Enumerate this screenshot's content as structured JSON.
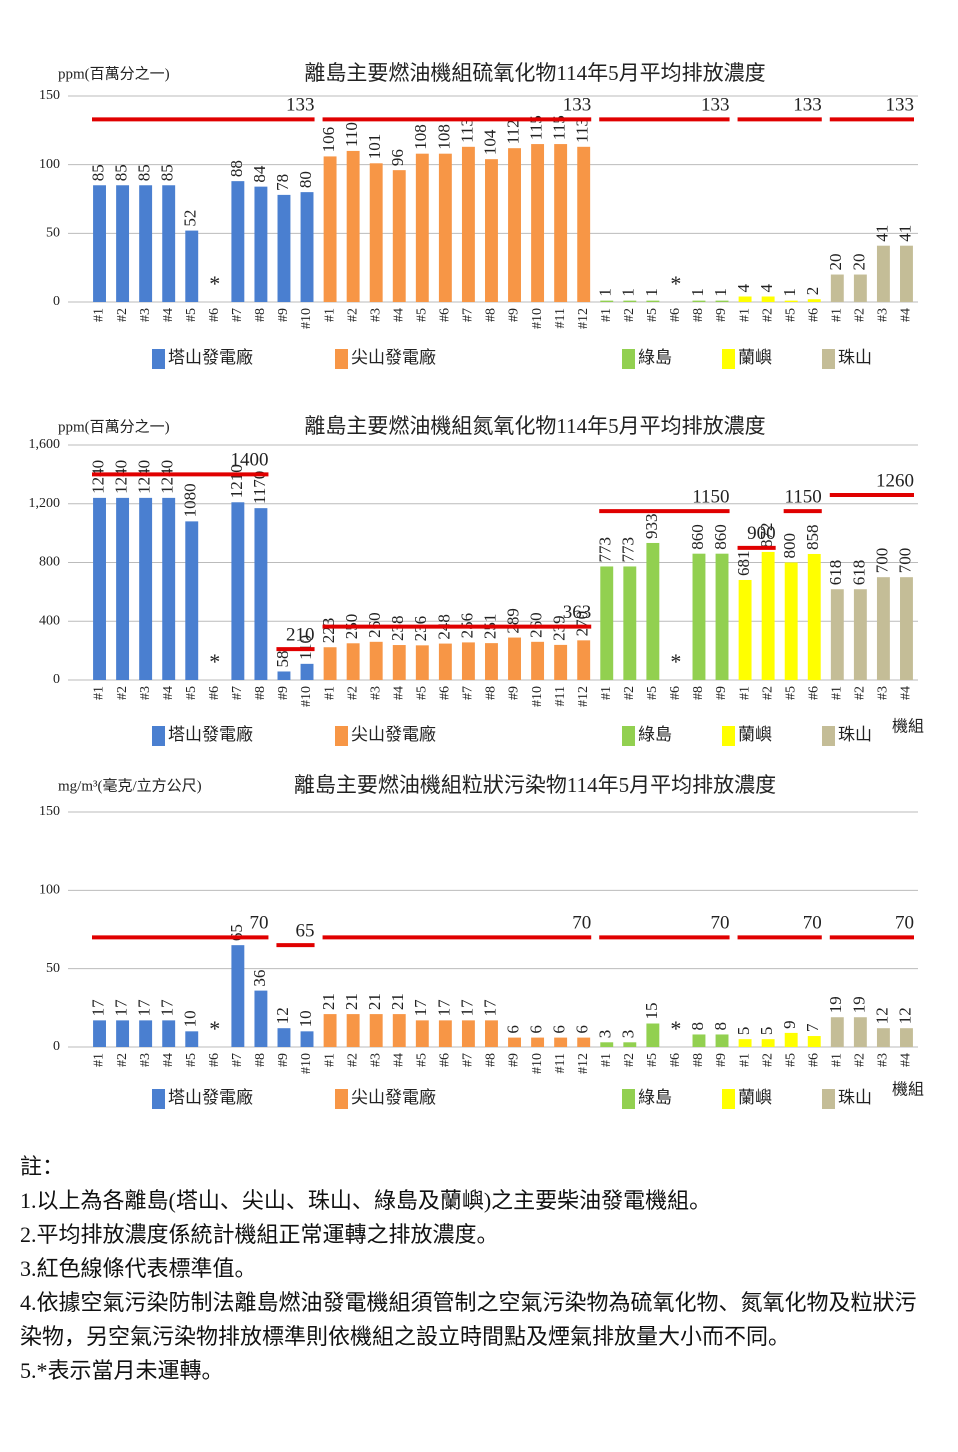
{
  "chart_data": [
    {
      "type": "bar",
      "title": "離島主要燃油機組硫氧化物114年5月平均排放濃度",
      "ylabel": "ppm(百萬分之一)",
      "ylim": [
        0,
        150
      ],
      "yticks": [
        0,
        50,
        100,
        150
      ],
      "grid": true,
      "series": [
        {
          "name": "塔山發電廠",
          "color": "#4a7fd0",
          "categories": [
            "#1",
            "#2",
            "#3",
            "#4",
            "#5",
            "#6",
            "#7",
            "#8",
            "#9",
            "#10"
          ],
          "values": [
            85,
            85,
            85,
            85,
            52,
            null,
            88,
            84,
            78,
            80
          ],
          "value_labels": [
            null,
            null,
            null,
            null,
            null,
            "*",
            null,
            null,
            null,
            null
          ],
          "limits": [
            133,
            133,
            133,
            133,
            133,
            133,
            133,
            133,
            133,
            133
          ]
        },
        {
          "name": "尖山發電廠",
          "color": "#f79646",
          "categories": [
            "#1",
            "#2",
            "#3",
            "#4",
            "#5",
            "#6",
            "#7",
            "#8",
            "#9",
            "#10",
            "#11",
            "#12"
          ],
          "values": [
            106,
            110,
            101,
            96,
            108,
            108,
            113,
            104,
            112,
            115,
            115,
            113
          ],
          "limits": [
            133,
            133,
            133,
            133,
            133,
            133,
            133,
            133,
            133,
            133,
            133,
            133
          ]
        },
        {
          "name": "綠島",
          "color": "#92d050",
          "categories": [
            "#1",
            "#2",
            "#5",
            "#6",
            "#8",
            "#9"
          ],
          "values": [
            1,
            1,
            1,
            null,
            1,
            1
          ],
          "value_labels": [
            null,
            null,
            null,
            "*",
            null,
            null
          ],
          "limits": [
            133,
            133,
            133,
            133,
            133,
            133
          ]
        },
        {
          "name": "蘭嶼",
          "color": "#ffff00",
          "categories": [
            "#1",
            "#2",
            "#5",
            "#6"
          ],
          "values": [
            4,
            4,
            1,
            2
          ],
          "limits": [
            133,
            133,
            133,
            133
          ]
        },
        {
          "name": "珠山",
          "color": "#c4bd97",
          "categories": [
            "#1",
            "#2",
            "#3",
            "#4"
          ],
          "values": [
            20,
            20,
            41,
            41
          ],
          "limits": [
            133,
            133,
            133,
            133
          ]
        }
      ]
    },
    {
      "type": "bar",
      "title": "離島主要燃油機組氮氧化物114年5月平均排放濃度",
      "ylabel": "ppm(百萬分之一)",
      "xlabel": "機組",
      "ylim": [
        0,
        1600
      ],
      "yticks": [
        0,
        400,
        800,
        {
          "value": 1200,
          "label": "1,200"
        },
        {
          "value": 1600,
          "label": "1,600"
        }
      ],
      "grid": true,
      "series": [
        {
          "name": "塔山發電廠",
          "color": "#4a7fd0",
          "categories": [
            "#1",
            "#2",
            "#3",
            "#4",
            "#5",
            "#6",
            "#7",
            "#8",
            "#9",
            "#10"
          ],
          "values": [
            1240,
            1240,
            1240,
            1240,
            1080,
            null,
            1210,
            1170,
            58,
            110
          ],
          "value_labels": [
            null,
            null,
            null,
            null,
            null,
            "*",
            null,
            null,
            null,
            null
          ],
          "limits": [
            1400,
            1400,
            1400,
            1400,
            1400,
            1400,
            1400,
            1400,
            210,
            210
          ]
        },
        {
          "name": "尖山發電廠",
          "color": "#f79646",
          "categories": [
            "#1",
            "#2",
            "#3",
            "#4",
            "#5",
            "#6",
            "#7",
            "#8",
            "#9",
            "#10",
            "#11",
            "#12"
          ],
          "values": [
            223,
            250,
            260,
            238,
            236,
            248,
            256,
            251,
            289,
            260,
            239,
            270
          ],
          "limits": [
            363,
            363,
            363,
            363,
            363,
            363,
            363,
            363,
            363,
            363,
            363,
            363
          ]
        },
        {
          "name": "綠島",
          "color": "#92d050",
          "categories": [
            "#1",
            "#2",
            "#5",
            "#6",
            "#8",
            "#9"
          ],
          "values": [
            773,
            773,
            933,
            null,
            860,
            860
          ],
          "value_labels": [
            null,
            null,
            null,
            "*",
            null,
            null
          ],
          "limits": [
            1150,
            1150,
            1150,
            1150,
            1150,
            1150
          ]
        },
        {
          "name": "蘭嶼",
          "color": "#ffff00",
          "categories": [
            "#1",
            "#2",
            "#5",
            "#6"
          ],
          "values": [
            681,
            872,
            800,
            858
          ],
          "limits": [
            900,
            900,
            1150,
            1150
          ]
        },
        {
          "name": "珠山",
          "color": "#c4bd97",
          "categories": [
            "#1",
            "#2",
            "#3",
            "#4"
          ],
          "values": [
            618,
            618,
            700,
            700
          ],
          "limits": [
            1260,
            1260,
            1260,
            1260
          ]
        }
      ]
    },
    {
      "type": "bar",
      "title": "離島主要燃油機組粒狀污染物114年5月平均排放濃度",
      "ylabel": "mg/m³(毫克/立方公尺)",
      "xlabel": "機組",
      "ylim": [
        0,
        150
      ],
      "yticks": [
        0,
        50,
        100,
        150
      ],
      "grid": true,
      "series": [
        {
          "name": "塔山發電廠",
          "color": "#4a7fd0",
          "categories": [
            "#1",
            "#2",
            "#3",
            "#4",
            "#5",
            "#6",
            "#7",
            "#8",
            "#9",
            "#10"
          ],
          "values": [
            17,
            17,
            17,
            17,
            10,
            null,
            65,
            36,
            12,
            10
          ],
          "value_labels": [
            null,
            null,
            null,
            null,
            null,
            "*",
            null,
            null,
            null,
            null
          ],
          "limits": [
            70,
            70,
            70,
            70,
            70,
            70,
            70,
            70,
            65,
            65
          ]
        },
        {
          "name": "尖山發電廠",
          "color": "#f79646",
          "categories": [
            "#1",
            "#2",
            "#3",
            "#4",
            "#5",
            "#6",
            "#7",
            "#8",
            "#9",
            "#10",
            "#11",
            "#12"
          ],
          "values": [
            21,
            21,
            21,
            21,
            17,
            17,
            17,
            17,
            6,
            6,
            6,
            6
          ],
          "limits": [
            70,
            70,
            70,
            70,
            70,
            70,
            70,
            70,
            70,
            70,
            70,
            70
          ]
        },
        {
          "name": "綠島",
          "color": "#92d050",
          "categories": [
            "#1",
            "#2",
            "#5",
            "#6",
            "#8",
            "#9"
          ],
          "values": [
            3,
            3,
            15,
            null,
            8,
            8
          ],
          "value_labels": [
            null,
            null,
            null,
            "*",
            null,
            null
          ],
          "limits": [
            70,
            70,
            70,
            70,
            70,
            70
          ]
        },
        {
          "name": "蘭嶼",
          "color": "#ffff00",
          "categories": [
            "#1",
            "#2",
            "#5",
            "#6"
          ],
          "values": [
            5,
            5,
            9,
            7
          ],
          "limits": [
            70,
            70,
            70,
            70
          ]
        },
        {
          "name": "珠山",
          "color": "#c4bd97",
          "categories": [
            "#1",
            "#2",
            "#3",
            "#4"
          ],
          "values": [
            19,
            19,
            12,
            12
          ],
          "limits": [
            70,
            70,
            70,
            70
          ]
        }
      ]
    }
  ],
  "notes": {
    "heading": "註：",
    "items": [
      "1.以上為各離島(塔山、尖山、珠山、綠島及蘭嶼)之主要柴油發電機組。",
      "2.平均排放濃度係統計機組正常運轉之排放濃度。",
      "3.紅色線條代表標準值。",
      "4.依據空氣污染防制法離島燃油發電機組須管制之空氣污染物為硫氧化物、氮氧化物及粒狀污染物，另空氣污染物排放標準則依機組之設立時間點及煙氣排放量大小而不同。",
      "5.*表示當月未運轉。"
    ]
  }
}
